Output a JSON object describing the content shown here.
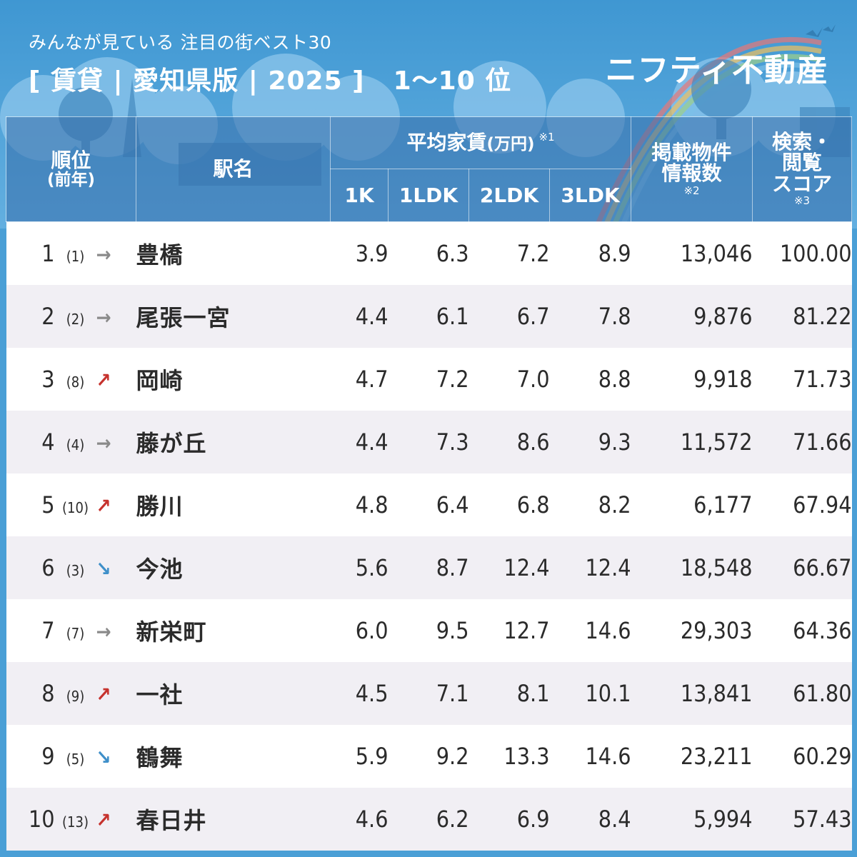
{
  "header": {
    "subtitle": "みんなが見ている 注目の街ベスト30",
    "title": "[ 賃貸 | 愛知県版 | 2025 ]",
    "range": "1〜10 位",
    "brand": "ニフティ不動産"
  },
  "columns": {
    "rank_line1": "順位",
    "rank_line2": "(前年)",
    "station": "駅名",
    "rent_group": "平均家賃",
    "rent_unit": "(万円)",
    "rent_note": "※1",
    "rent_types": [
      "1K",
      "1LDK",
      "2LDK",
      "3LDK"
    ],
    "listings_line1": "掲載物件",
    "listings_line2": "情報数",
    "listings_note": "※2",
    "score_line1": "検索・",
    "score_line2": "閲覧",
    "score_line3": "スコア",
    "score_note": "※3"
  },
  "rows": [
    {
      "rank": "1",
      "prev": "(1)",
      "trend": "same",
      "arrow": "→",
      "station": "豊橋",
      "k1": "3.9",
      "ldk1": "6.3",
      "ldk2": "7.2",
      "ldk3": "8.9",
      "listings": "13,046",
      "score": "100.00"
    },
    {
      "rank": "2",
      "prev": "(2)",
      "trend": "same",
      "arrow": "→",
      "station": "尾張一宮",
      "k1": "4.4",
      "ldk1": "6.1",
      "ldk2": "6.7",
      "ldk3": "7.8",
      "listings": "9,876",
      "score": "81.22"
    },
    {
      "rank": "3",
      "prev": "(8)",
      "trend": "up",
      "arrow": "↗",
      "station": "岡崎",
      "k1": "4.7",
      "ldk1": "7.2",
      "ldk2": "7.0",
      "ldk3": "8.8",
      "listings": "9,918",
      "score": "71.73"
    },
    {
      "rank": "4",
      "prev": "(4)",
      "trend": "same",
      "arrow": "→",
      "station": "藤が丘",
      "k1": "4.4",
      "ldk1": "7.3",
      "ldk2": "8.6",
      "ldk3": "9.3",
      "listings": "11,572",
      "score": "71.66"
    },
    {
      "rank": "5",
      "prev": "(10)",
      "trend": "up",
      "arrow": "↗",
      "station": "勝川",
      "k1": "4.8",
      "ldk1": "6.4",
      "ldk2": "6.8",
      "ldk3": "8.2",
      "listings": "6,177",
      "score": "67.94"
    },
    {
      "rank": "6",
      "prev": "(3)",
      "trend": "down",
      "arrow": "↘",
      "station": "今池",
      "k1": "5.6",
      "ldk1": "8.7",
      "ldk2": "12.4",
      "ldk3": "12.4",
      "listings": "18,548",
      "score": "66.67"
    },
    {
      "rank": "7",
      "prev": "(7)",
      "trend": "same",
      "arrow": "→",
      "station": "新栄町",
      "k1": "6.0",
      "ldk1": "9.5",
      "ldk2": "12.7",
      "ldk3": "14.6",
      "listings": "29,303",
      "score": "64.36"
    },
    {
      "rank": "8",
      "prev": "(9)",
      "trend": "up",
      "arrow": "↗",
      "station": "一社",
      "k1": "4.5",
      "ldk1": "7.1",
      "ldk2": "8.1",
      "ldk3": "10.1",
      "listings": "13,841",
      "score": "61.80"
    },
    {
      "rank": "9",
      "prev": "(5)",
      "trend": "down",
      "arrow": "↘",
      "station": "鶴舞",
      "k1": "5.9",
      "ldk1": "9.2",
      "ldk2": "13.3",
      "ldk3": "14.6",
      "listings": "23,211",
      "score": "60.29"
    },
    {
      "rank": "10",
      "prev": "(13)",
      "trend": "up",
      "arrow": "↗",
      "station": "春日井",
      "k1": "4.6",
      "ldk1": "6.2",
      "ldk2": "6.9",
      "ldk3": "8.4",
      "listings": "5,994",
      "score": "57.43"
    }
  ],
  "colors": {
    "background": "#4a9fd6",
    "trend_up": "#c6322d",
    "trend_down": "#3e8fc9",
    "trend_same": "#8a8a8a"
  }
}
